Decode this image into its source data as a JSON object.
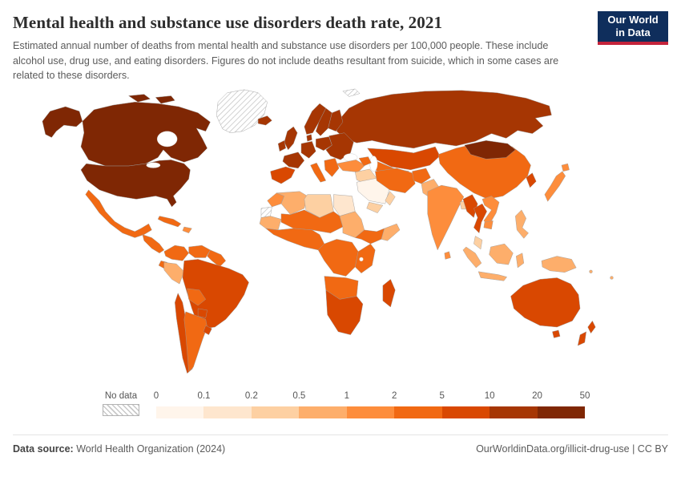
{
  "header": {
    "title": "Mental health and substance use disorders death rate, 2021",
    "subtitle": "Estimated annual number of deaths from mental health and substance use disorders per 100,000 people. These include alcohol use, drug use, and eating disorders. Figures do not include deaths resultant from suicide, which in some cases are related to these disorders.",
    "logo_line1": "Our World",
    "logo_line2": "in Data",
    "logo_bg": "#0F2E5C",
    "logo_accent": "#C4233B"
  },
  "chart_data": {
    "type": "choropleth",
    "title": "Mental health and substance use disorders death rate, 2021",
    "metric": "Deaths from mental health and substance use disorders per 100,000 people",
    "year": 2021,
    "legend": {
      "no_data_label": "No data",
      "tick_labels": [
        "0",
        "0.1",
        "0.2",
        "0.5",
        "1",
        "2",
        "5",
        "10",
        "20",
        "50"
      ],
      "bin_colors": [
        "#fff5eb",
        "#fee6ce",
        "#fdd0a2",
        "#fdae6b",
        "#fd8d3c",
        "#f16913",
        "#d94801",
        "#a63603",
        "#7f2704"
      ],
      "bin_ranges": [
        "0–0.1",
        "0.1–0.2",
        "0.2–0.5",
        "0.5–1",
        "1–2",
        "2–5",
        "5–10",
        "10–20",
        "20–50"
      ]
    },
    "regions": [
      {
        "name": "Greenland",
        "no_data": true
      },
      {
        "name": "Svalbard",
        "no_data": true
      },
      {
        "name": "Western Sahara",
        "no_data": true
      },
      {
        "name": "Canada",
        "bin": 8
      },
      {
        "name": "United States",
        "bin": 8
      },
      {
        "name": "Mexico",
        "bin": 5
      },
      {
        "name": "Central America",
        "bin": 5
      },
      {
        "name": "Cuba",
        "bin": 5
      },
      {
        "name": "Caribbean",
        "bin": 4
      },
      {
        "name": "Colombia",
        "bin": 5
      },
      {
        "name": "Venezuela",
        "bin": 5
      },
      {
        "name": "Guianas",
        "bin": 5
      },
      {
        "name": "Ecuador",
        "bin": 5
      },
      {
        "name": "Peru",
        "bin": 3
      },
      {
        "name": "Brazil",
        "bin": 6
      },
      {
        "name": "Bolivia",
        "bin": 5
      },
      {
        "name": "Paraguay",
        "bin": 6
      },
      {
        "name": "Chile",
        "bin": 6
      },
      {
        "name": "Argentina",
        "bin": 5
      },
      {
        "name": "Uruguay",
        "bin": 6
      },
      {
        "name": "Iceland",
        "bin": 7
      },
      {
        "name": "United Kingdom",
        "bin": 7
      },
      {
        "name": "Ireland",
        "bin": 7
      },
      {
        "name": "Norway",
        "bin": 7
      },
      {
        "name": "Sweden",
        "bin": 7
      },
      {
        "name": "Finland",
        "bin": 7
      },
      {
        "name": "Denmark",
        "bin": 7
      },
      {
        "name": "Spain & Portugal",
        "bin": 6
      },
      {
        "name": "France",
        "bin": 7
      },
      {
        "name": "Central Europe",
        "bin": 7
      },
      {
        "name": "Italy",
        "bin": 5
      },
      {
        "name": "Poland",
        "bin": 7
      },
      {
        "name": "Eastern Europe",
        "bin": 7
      },
      {
        "name": "Balkans & Greece",
        "bin": 5
      },
      {
        "name": "Russia",
        "bin": 7
      },
      {
        "name": "Kazakhstan",
        "bin": 6
      },
      {
        "name": "Central Asia",
        "bin": 5
      },
      {
        "name": "Turkey",
        "bin": 4
      },
      {
        "name": "Caucasus",
        "bin": 5
      },
      {
        "name": "Iraq & Levant",
        "bin": 2
      },
      {
        "name": "Saudi Arabia",
        "bin": 0
      },
      {
        "name": "Yemen",
        "bin": 2
      },
      {
        "name": "Oman",
        "bin": 2
      },
      {
        "name": "Iran",
        "bin": 5
      },
      {
        "name": "Afghanistan",
        "bin": 5
      },
      {
        "name": "Pakistan",
        "bin": 3
      },
      {
        "name": "India",
        "bin": 4
      },
      {
        "name": "Bangladesh",
        "bin": 2
      },
      {
        "name": "Sri Lanka",
        "bin": 4
      },
      {
        "name": "China",
        "bin": 5
      },
      {
        "name": "Mongolia",
        "bin": 8
      },
      {
        "name": "Korean Peninsula",
        "bin": 6
      },
      {
        "name": "Japan",
        "bin": 4
      },
      {
        "name": "Myanmar",
        "bin": 6
      },
      {
        "name": "Thailand",
        "bin": 6
      },
      {
        "name": "Vietnam & Laos",
        "bin": 4
      },
      {
        "name": "Cambodia",
        "bin": 4
      },
      {
        "name": "Malaysia",
        "bin": 2
      },
      {
        "name": "Indonesia",
        "bin": 3
      },
      {
        "name": "Philippines",
        "bin": 3
      },
      {
        "name": "Papua New Guinea",
        "bin": 3
      },
      {
        "name": "Pacific Islands",
        "bin": 3
      },
      {
        "name": "Australia",
        "bin": 6
      },
      {
        "name": "New Zealand",
        "bin": 6
      },
      {
        "name": "Morocco",
        "bin": 4
      },
      {
        "name": "Algeria",
        "bin": 3
      },
      {
        "name": "Libya",
        "bin": 2
      },
      {
        "name": "Egypt",
        "bin": 1
      },
      {
        "name": "Mauritania",
        "bin": 3
      },
      {
        "name": "Sahel",
        "bin": 5
      },
      {
        "name": "Sudan",
        "bin": 3
      },
      {
        "name": "West Africa",
        "bin": 5
      },
      {
        "name": "Ethiopia",
        "bin": 5
      },
      {
        "name": "Somalia",
        "bin": 3
      },
      {
        "name": "Central Africa",
        "bin": 5
      },
      {
        "name": "East Africa",
        "bin": 5
      },
      {
        "name": "Angola & Zambia",
        "bin": 5
      },
      {
        "name": "Southern Africa",
        "bin": 6
      },
      {
        "name": "Madagascar",
        "bin": 6
      }
    ]
  },
  "footer": {
    "source_label": "Data source:",
    "source_value": " World Health Organization (2024)",
    "link": "OurWorldinData.org/illicit-drug-use",
    "separator": " | ",
    "license": "CC BY"
  }
}
